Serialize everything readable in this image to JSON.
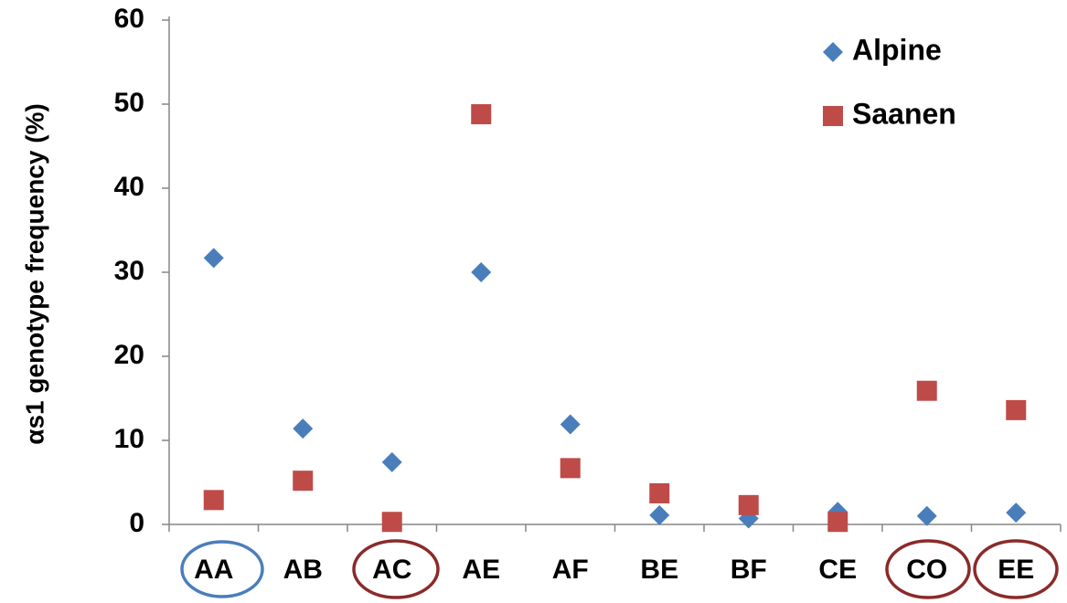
{
  "chart_data": {
    "type": "scatter",
    "y_label": "αs1 genotype frequency (%)",
    "categories": [
      "AA",
      "AB",
      "AC",
      "AE",
      "AF",
      "BE",
      "BF",
      "CE",
      "CO",
      "EE"
    ],
    "series": [
      {
        "name": "Alpine",
        "color": "#4a7ebb",
        "marker": "diamond",
        "values": [
          31.7,
          11.4,
          7.4,
          30.0,
          11.9,
          1.1,
          0.7,
          1.5,
          1.0,
          1.4
        ]
      },
      {
        "name": "Saanen",
        "color": "#be4b48",
        "marker": "square",
        "values": [
          2.9,
          5.2,
          0.3,
          48.8,
          6.7,
          3.7,
          2.3,
          0.3,
          15.9,
          13.6
        ]
      }
    ],
    "ylim": [
      0,
      60
    ],
    "yticks": [
      0,
      10,
      20,
      30,
      40,
      50,
      60
    ],
    "grid": false,
    "legend": "upper right"
  }
}
